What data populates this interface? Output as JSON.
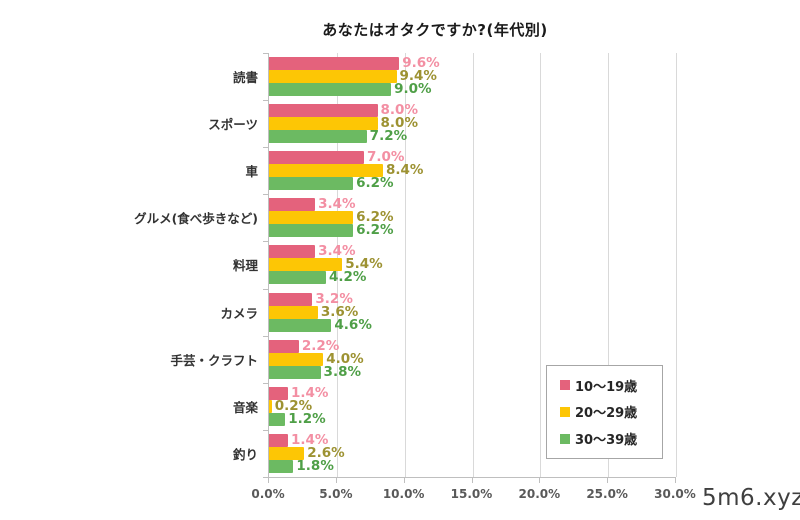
{
  "watermark": "5m6.xyz",
  "chart_data": {
    "type": "bar",
    "orientation": "horizontal",
    "title": "あなたはオタクですか?(年代別)",
    "categories": [
      "読書",
      "スポーツ",
      "車",
      "グルメ(食べ歩きなど)",
      "料理",
      "カメラ",
      "手芸・クラフト",
      "音楽",
      "釣り"
    ],
    "series": [
      {
        "name": "10〜19歳",
        "color": "#e4627c",
        "label_color": "#f38fa3",
        "values": [
          9.6,
          8.0,
          7.0,
          3.4,
          3.4,
          3.2,
          2.2,
          1.4,
          1.4
        ]
      },
      {
        "name": "20〜29歳",
        "color": "#fdc605",
        "label_color": "#9d9232",
        "values": [
          9.4,
          8.0,
          8.4,
          6.2,
          5.4,
          3.6,
          4.0,
          0.2,
          2.6
        ]
      },
      {
        "name": "30〜39歳",
        "color": "#6cba62",
        "label_color": "#4f9f47",
        "values": [
          9.0,
          7.2,
          6.2,
          6.2,
          4.2,
          4.6,
          3.8,
          1.2,
          1.8
        ]
      }
    ],
    "x_ticks": [
      "0.0%",
      "5.0%",
      "10.0%",
      "15.0%",
      "20.0%",
      "25.0%",
      "30.0%"
    ],
    "x_tick_values": [
      0,
      5,
      10,
      15,
      20,
      25,
      30
    ],
    "xlim": [
      0,
      30
    ],
    "value_suffix": "%",
    "grid": true,
    "legend_position": "inside-bottom-right",
    "colors": {
      "gridline": "#d9d9d9",
      "axis": "#bfbfbf",
      "tick_label": "#595959"
    }
  }
}
